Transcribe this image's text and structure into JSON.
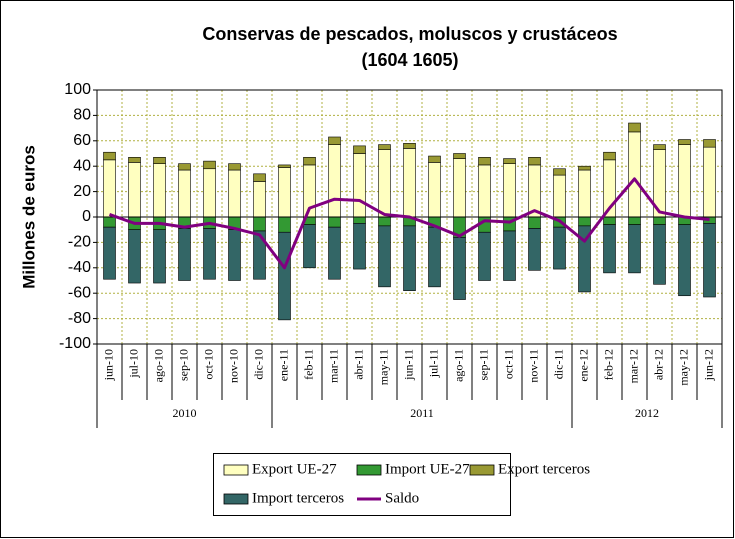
{
  "chart_data": {
    "type": "bar",
    "title": "Conservas de pescados, moluscos y crustáceos",
    "subtitle": "(1604 1605)",
    "y_label": "Millones de euros",
    "categories": [
      "jun-10",
      "jul-10",
      "ago-10",
      "sep-10",
      "oct-10",
      "nov-10",
      "dic-10",
      "ene-11",
      "feb-11",
      "mar-11",
      "abr-11",
      "may-11",
      "jun-11",
      "jul-11",
      "ago-11",
      "sep-11",
      "oct-11",
      "nov-11",
      "dic-11",
      "ene-12",
      "feb-12",
      "mar-12",
      "abr-12",
      "may-12",
      "jun-12"
    ],
    "groups": [
      {
        "label": "2010",
        "count": 7
      },
      {
        "label": "2011",
        "count": 12
      },
      {
        "label": "2012",
        "count": 6
      }
    ],
    "series": [
      {
        "name": "Export UE-27",
        "color": "#ffffc0",
        "values": [
          45,
          43,
          42,
          37,
          38,
          37,
          28,
          39,
          41,
          57,
          50,
          53,
          54,
          43,
          46,
          41,
          42,
          41,
          33,
          37,
          45,
          67,
          53,
          57,
          55
        ]
      },
      {
        "name": "Import UE-27",
        "color": "#339933",
        "values": [
          -8,
          -10,
          -10,
          -9,
          -9,
          -10,
          -11,
          -12,
          -6,
          -8,
          -5,
          -7,
          -7,
          -8,
          -16,
          -12,
          -11,
          -9,
          -8,
          -7,
          -6,
          -6,
          -6,
          -6,
          -5
        ]
      },
      {
        "name": "Export terceros",
        "color": "#999933",
        "values": [
          6,
          4,
          5,
          5,
          6,
          5,
          6,
          2,
          6,
          6,
          6,
          4,
          4,
          5,
          4,
          6,
          4,
          6,
          5,
          3,
          6,
          7,
          4,
          4,
          6
        ]
      },
      {
        "name": "Import terceros",
        "color": "#336666",
        "values": [
          -41,
          -42,
          -42,
          -41,
          -40,
          -40,
          -38,
          -69,
          -34,
          -41,
          -36,
          -48,
          -51,
          -47,
          -49,
          -38,
          -39,
          -33,
          -33,
          -52,
          -38,
          -38,
          -47,
          -56,
          -58
        ]
      },
      {
        "name": "Saldo",
        "type": "line",
        "color": "#800080",
        "values": [
          2,
          -5,
          -5,
          -8,
          -5,
          -9,
          -14,
          -40,
          7,
          14,
          13,
          2,
          0,
          -7,
          -15,
          -3,
          -4,
          5,
          -3,
          -19,
          7,
          30,
          4,
          0,
          -2
        ]
      }
    ],
    "ylim": [
      -100,
      100
    ],
    "yticks": [
      -100,
      -80,
      -60,
      -40,
      -20,
      0,
      20,
      40,
      60,
      80,
      100
    ],
    "grid": true
  }
}
